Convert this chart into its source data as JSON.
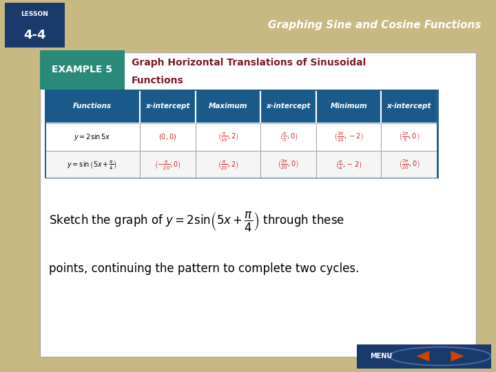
{
  "bg_outer": "#c8b882",
  "bg_inner": "#ffffff",
  "header_title": "Graphing Sine and Cosine Functions",
  "lesson_label": "LESSON\n4-4",
  "lesson_bg": "#1a3a6b",
  "example_label": "EXAMPLE 5",
  "example_bg": "#2a8a7a",
  "example_title_color": "#7a1a2a",
  "table_header_bg": "#1a5a8a",
  "table_header_text": "#ffffff",
  "table_border": "#1a5a8a",
  "table_data_color": "#cc2222",
  "col_headers": [
    "Functions",
    "x-intercept",
    "Maximum",
    "x-intercept",
    "Minimum",
    "x-intercept"
  ],
  "row1_label": "$y = 2\\sin 5x$",
  "row1_cells": [
    "$(0, 0)$",
    "$\\left(\\frac{\\pi}{10}, 2\\right)$",
    "$\\left(\\frac{\\pi}{5}, 0\\right)$",
    "$\\left(\\frac{3\\pi}{10}, -2\\right)$",
    "$\\left(\\frac{2\\pi}{5}, 0\\right)$"
  ],
  "row2_label": "$y = \\sin\\left(5x + \\frac{\\pi}{4}\\right)$",
  "row2_cells": [
    "$\\left(-\\frac{\\pi}{20}, 0\\right)$",
    "$\\left(\\frac{\\pi}{20}, 2\\right)$",
    "$\\left(\\frac{3\\pi}{20}, 0\\right)$",
    "$\\left(\\frac{\\pi}{4}, -2\\right)$",
    "$\\left(\\frac{7\\pi}{20}, 0\\right)$"
  ],
  "menu_bg": "#1a3a6b",
  "arrow_color": "#cc4400"
}
